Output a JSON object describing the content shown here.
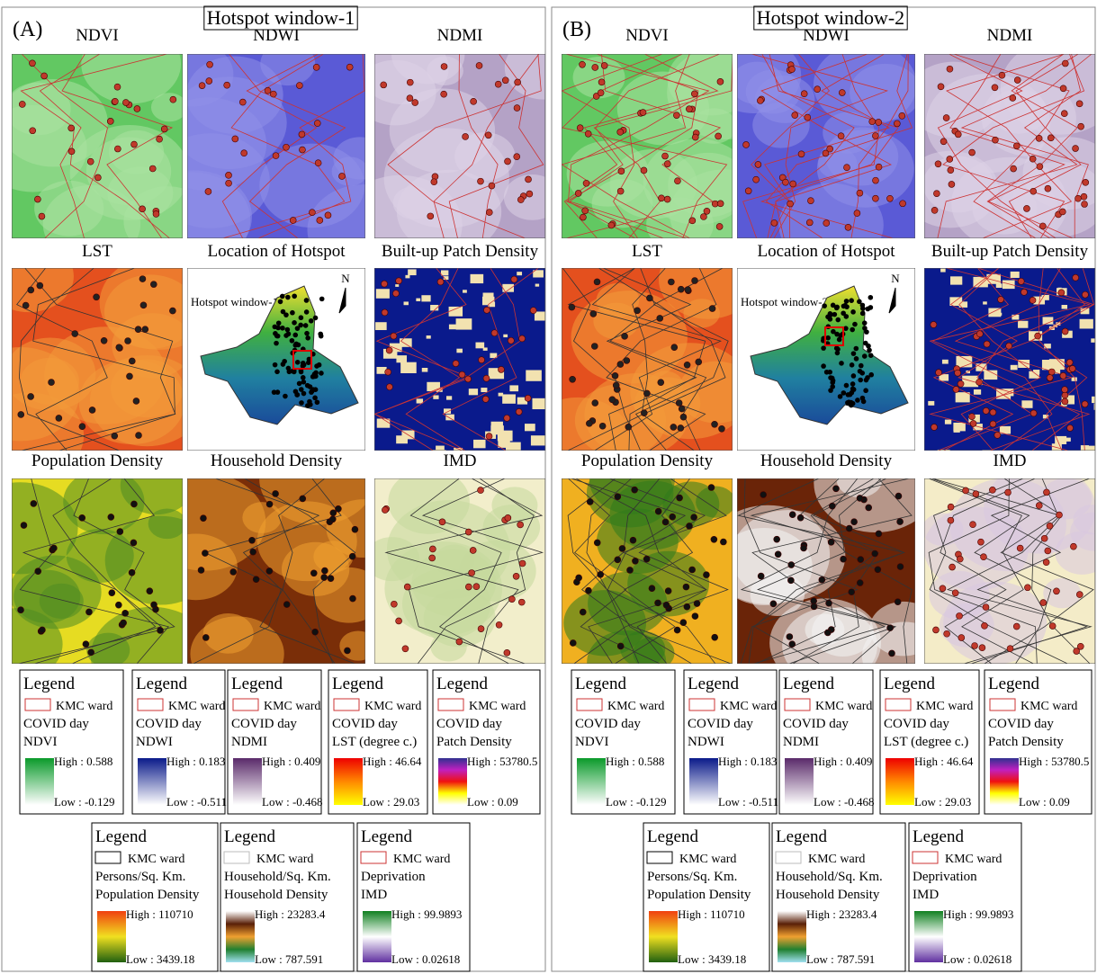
{
  "panels": [
    {
      "label": "(A)",
      "title": "Hotspot window-1",
      "maps": [
        {
          "title": "NDVI"
        },
        {
          "title": "NDWI"
        },
        {
          "title": "NDMI"
        },
        {
          "title": "LST"
        },
        {
          "title": "Location of Hotspot"
        },
        {
          "title": "Built-up Patch Density"
        },
        {
          "title": "Population Density"
        },
        {
          "title": "Household Density"
        },
        {
          "title": "IMD"
        }
      ],
      "inset_label": "Hotspot window-1",
      "north": "N",
      "legends": [
        {
          "heading": "Legend",
          "ward": "KMC ward",
          "lines": [
            "COVID day",
            "NDVI"
          ],
          "high": "High : 0.588",
          "low": "Low : -0.129"
        },
        {
          "heading": "Legend",
          "ward": "KMC ward",
          "lines": [
            "COVID day",
            "NDWI"
          ],
          "high": "High : 0.183",
          "low": "Low : -0.511"
        },
        {
          "heading": "Legend",
          "ward": "KMC ward",
          "lines": [
            "COVID day",
            "NDMI"
          ],
          "high": "High : 0.409",
          "low": "Low : -0.468"
        },
        {
          "heading": "Legend",
          "ward": "KMC ward",
          "lines": [
            "COVID day",
            "LST (degree c.)"
          ],
          "high": "High : 46.64",
          "low": "Low : 29.03"
        },
        {
          "heading": "Legend",
          "ward": "KMC ward",
          "lines": [
            "COVID day",
            "Patch Density"
          ],
          "high": "High : 53780.5",
          "low": "Low : 0.09"
        },
        {
          "heading": "Legend",
          "ward": "KMC ward",
          "lines": [
            "Persons/Sq. Km.",
            "Population Density"
          ],
          "high": "High : 110710",
          "low": "Low : 3439.18"
        },
        {
          "heading": "Legend",
          "ward": "KMC ward",
          "lines": [
            "Household/Sq. Km.",
            "Household Density"
          ],
          "high": "High : 23283.4",
          "low": "Low : 787.591"
        },
        {
          "heading": "Legend",
          "ward": "KMC ward",
          "lines": [
            "Deprivation",
            "IMD"
          ],
          "high": "High : 99.9893",
          "low": "Low : 0.02618"
        }
      ]
    },
    {
      "label": "(B)",
      "title": "Hotspot window-2",
      "maps": [
        {
          "title": "NDVI"
        },
        {
          "title": "NDWI"
        },
        {
          "title": "NDMI"
        },
        {
          "title": "LST"
        },
        {
          "title": "Location of Hotspot"
        },
        {
          "title": "Built-up Patch Density"
        },
        {
          "title": "Population Density"
        },
        {
          "title": "Household Density"
        },
        {
          "title": "IMD"
        }
      ],
      "inset_label": "Hotspot window-2",
      "north": "N",
      "legends": [
        {
          "heading": "Legend",
          "ward": "KMC ward",
          "lines": [
            "COVID day",
            "NDVI"
          ],
          "high": "High : 0.588",
          "low": "Low : -0.129"
        },
        {
          "heading": "Legend",
          "ward": "KMC ward",
          "lines": [
            "COVID day",
            "NDWI"
          ],
          "high": "High : 0.183",
          "low": "Low : -0.511"
        },
        {
          "heading": "Legend",
          "ward": "KMC ward",
          "lines": [
            "COVID day",
            "NDMI"
          ],
          "high": "High : 0.409",
          "low": "Low : -0.468"
        },
        {
          "heading": "Legend",
          "ward": "KMC ward",
          "lines": [
            "COVID day",
            "LST (degree c.)"
          ],
          "high": "High : 46.64",
          "low": "Low : 29.03"
        },
        {
          "heading": "Legend",
          "ward": "KMC ward",
          "lines": [
            "COVID day",
            "Patch Density"
          ],
          "high": "High : 53780.5",
          "low": "Low : 0.09"
        },
        {
          "heading": "Legend",
          "ward": "KMC ward",
          "lines": [
            "Persons/Sq. Km.",
            "Population Density"
          ],
          "high": "High : 110710",
          "low": "Low : 3439.18"
        },
        {
          "heading": "Legend",
          "ward": "KMC ward",
          "lines": [
            "Household/Sq. Km.",
            "Household Density"
          ],
          "high": "High : 23283.4",
          "low": "Low : 787.591"
        },
        {
          "heading": "Legend",
          "ward": "KMC ward",
          "lines": [
            "Deprivation",
            "IMD"
          ],
          "high": "High : 99.9893",
          "low": "Low : 0.02618"
        }
      ]
    }
  ]
}
